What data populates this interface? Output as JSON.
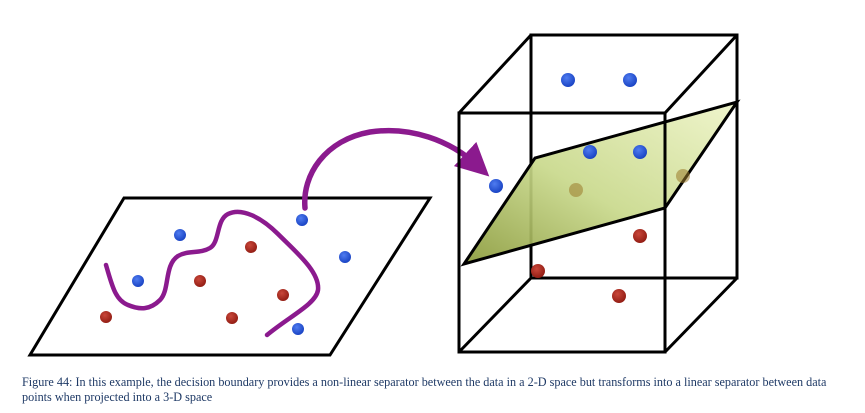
{
  "figure": {
    "caption": "Figure 44: In this example, the decision boundary provides a non-linear separator between the data in a 2-D space but transforms into a linear separator between data points when projected into a 3-D space"
  },
  "colors": {
    "blue_point": "#1f4fd1",
    "red_point": "#a8291d",
    "boundary_curve": "#8b1a8e",
    "arrow": "#8b1a8e",
    "separating_plane": "#c9d98c",
    "lines": "#000000",
    "caption_text": "#1f3a66"
  },
  "icons": {
    "arrow": "curved-arrow-icon"
  }
}
